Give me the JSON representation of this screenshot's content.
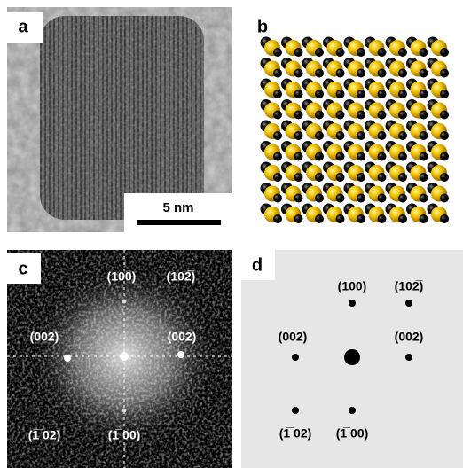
{
  "panels": [
    {
      "label": "a",
      "scale_bar": "5 nm"
    },
    {
      "label": "b"
    },
    {
      "label": "c",
      "spots": [
        "(100)",
        "(102̅)",
        "(002)",
        "(002̅)",
        "(1̅ 02)",
        "(1̅ 00)"
      ]
    },
    {
      "label": "d",
      "spots": [
        "(100)",
        "(102̅)",
        "(002)",
        "(002̅)",
        "(1̅ 02)",
        "(1̅ 00)"
      ]
    }
  ]
}
